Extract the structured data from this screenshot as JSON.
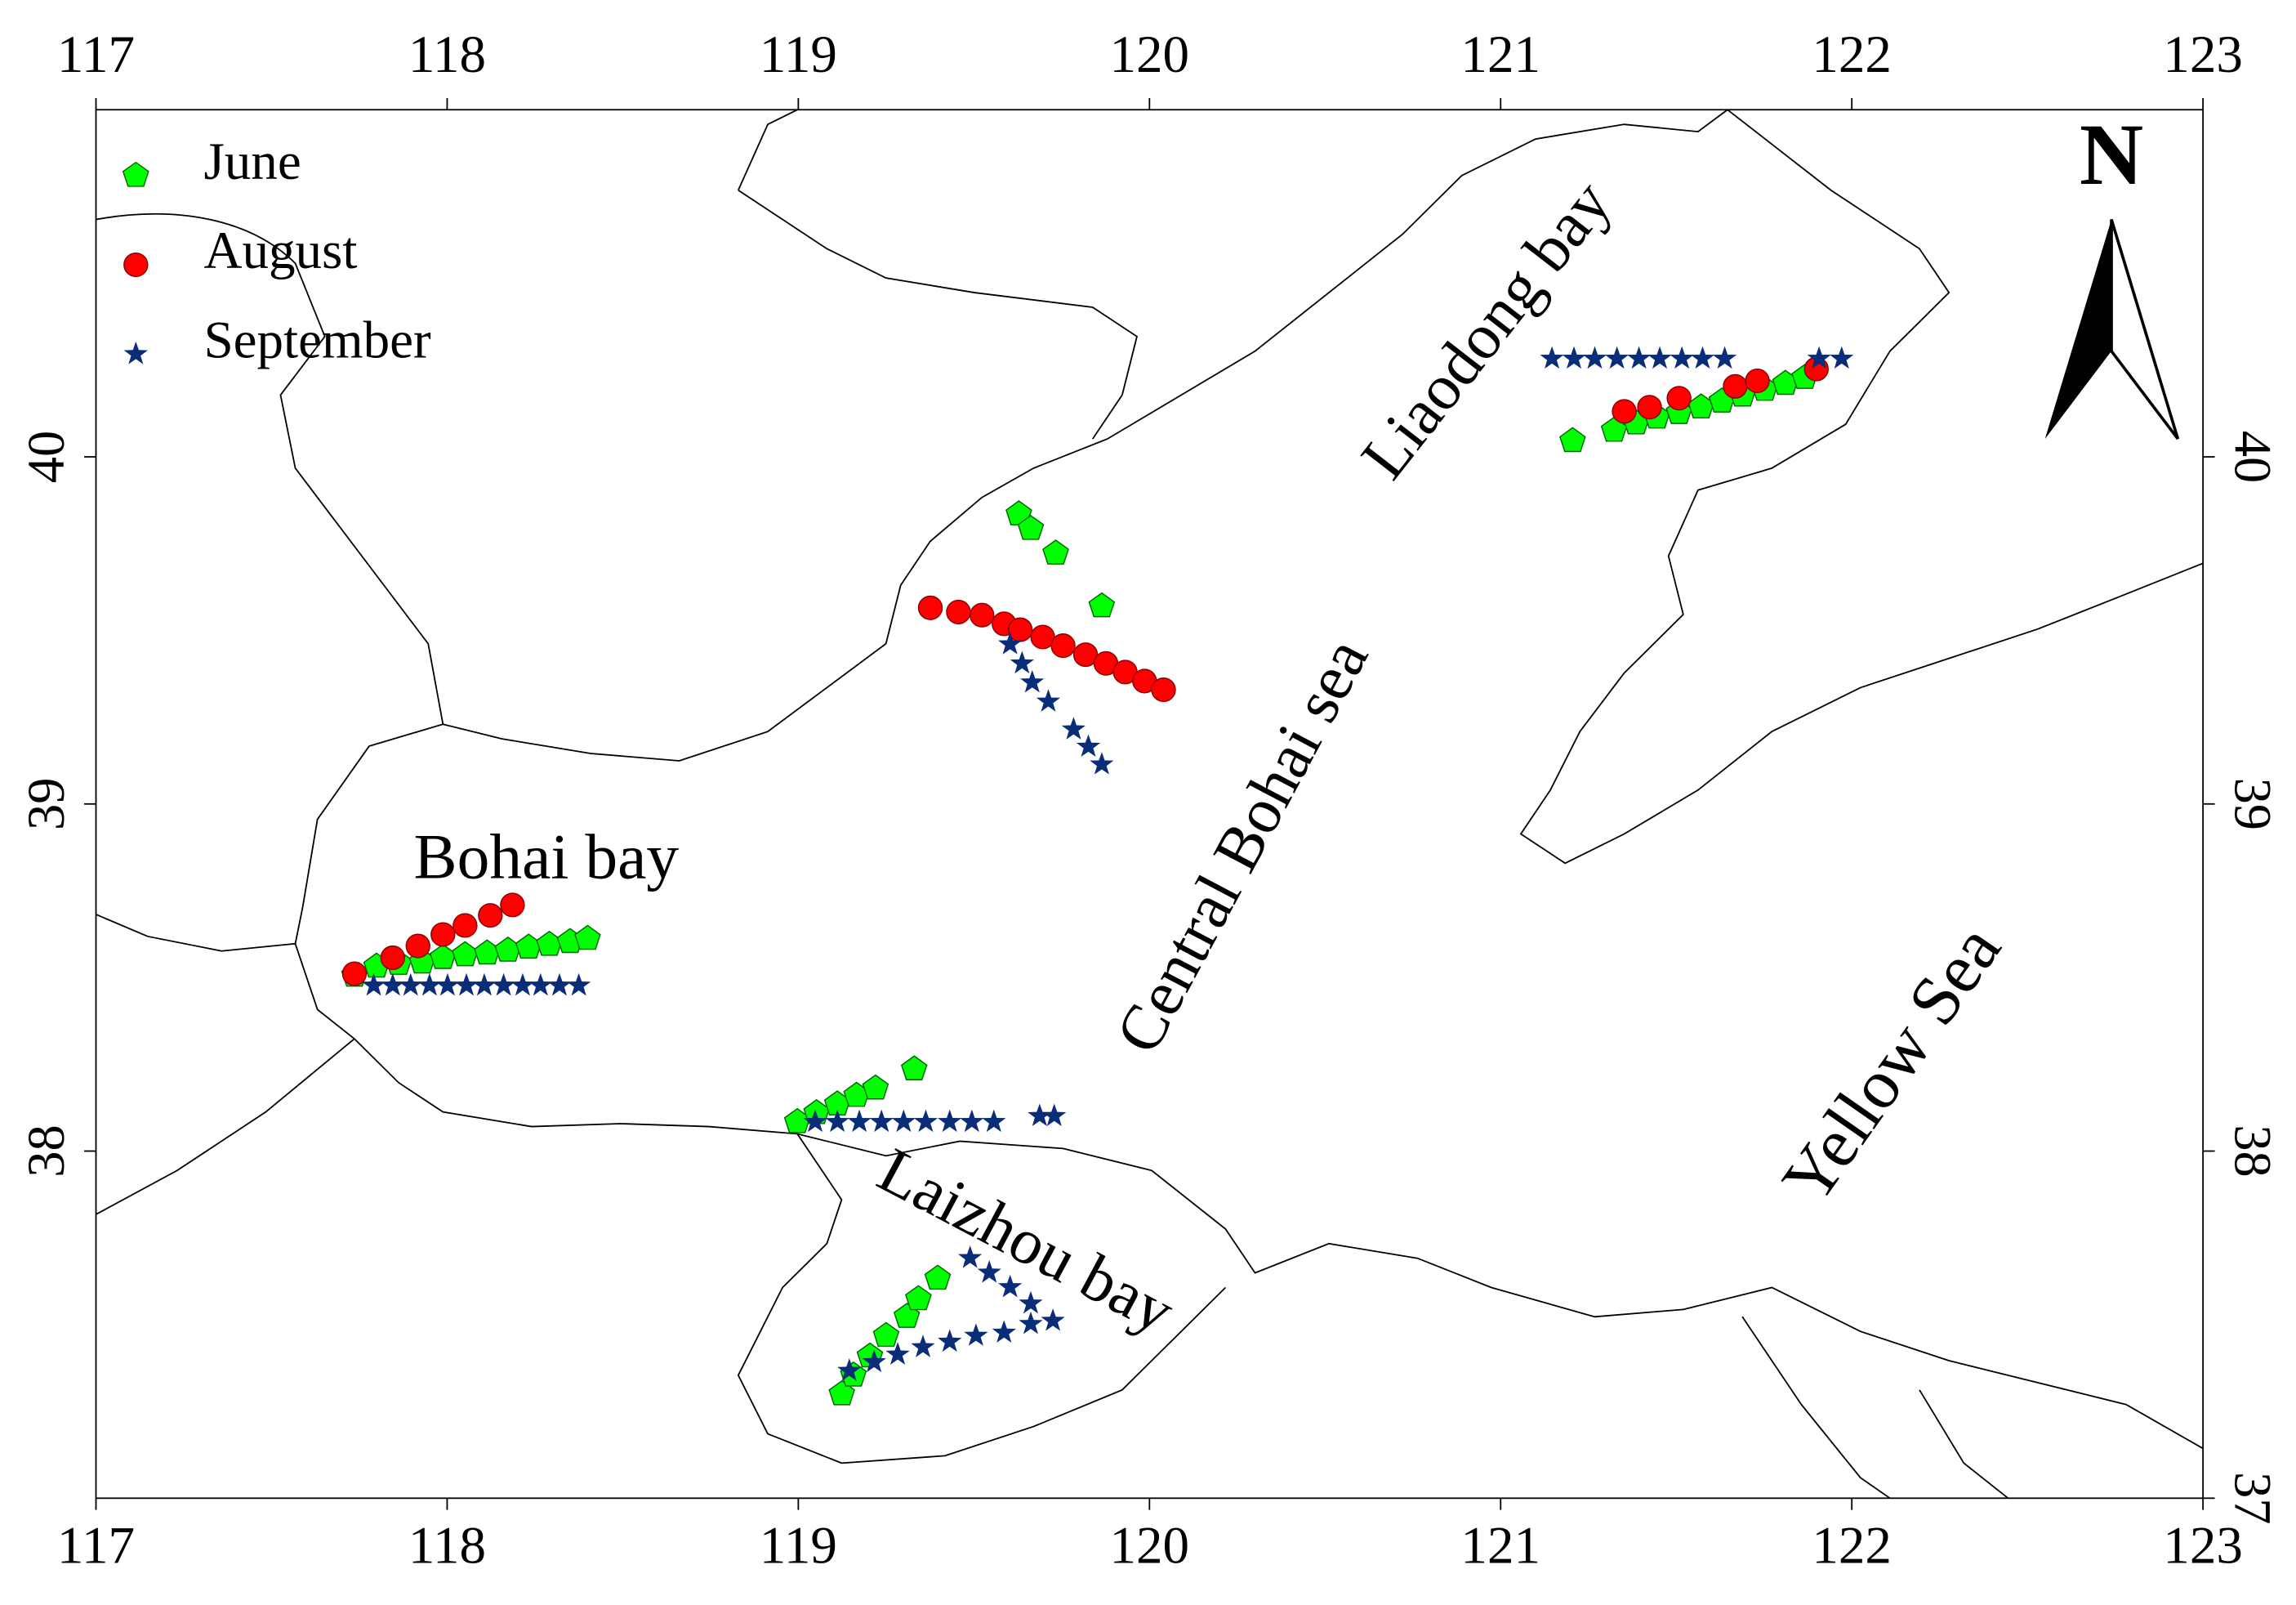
{
  "chart_data": {
    "type": "scatter",
    "legend": "upper left",
    "xlim": [
      117,
      123
    ],
    "ylim": [
      37,
      41
    ],
    "y2lim": [
      37,
      41
    ],
    "xticks": [
      117,
      118,
      119,
      120,
      121,
      122,
      123
    ],
    "yticks": [
      38,
      39,
      40
    ],
    "y2ticks": [
      37,
      38,
      39,
      40
    ],
    "annotations": [
      "Bohai bay",
      "Central Bohai sea",
      "Liaodong bay",
      "Laizhou bay",
      "Yellow Sea",
      "N"
    ],
    "series": [
      {
        "name": "June",
        "color": "#00ff00",
        "marker": "pentagon",
        "x": [
          121.205,
          121.323,
          121.386,
          121.445,
          121.508,
          121.571,
          121.63,
          121.689,
          121.752,
          121.811,
          121.866,
          119.628,
          119.662,
          119.733,
          119.864,
          117.736,
          117.799,
          117.862,
          117.929,
          117.988,
          118.051,
          118.114,
          118.173,
          118.232,
          118.291,
          118.35,
          118.4,
          118.997,
          119.052,
          119.111,
          119.166,
          119.22,
          119.33,
          119.124,
          119.157,
          119.204,
          119.25,
          119.309,
          119.342,
          119.397
        ],
        "values": [
          40.046,
          40.076,
          40.097,
          40.114,
          40.127,
          40.143,
          40.16,
          40.177,
          40.194,
          40.211,
          40.228,
          39.835,
          39.793,
          39.722,
          39.57,
          38.506,
          38.532,
          38.54,
          38.544,
          38.557,
          38.565,
          38.57,
          38.578,
          38.587,
          38.595,
          38.603,
          38.612,
          38.084,
          38.11,
          38.135,
          38.16,
          38.181,
          38.236,
          37.3,
          37.354,
          37.409,
          37.468,
          37.523,
          37.574,
          37.633
        ]
      },
      {
        "name": "August",
        "color": "#ff0000",
        "marker": "circle",
        "x": [
          121.352,
          121.424,
          121.508,
          121.668,
          121.731,
          121.899,
          119.376,
          119.456,
          119.523,
          119.586,
          119.632,
          119.696,
          119.754,
          119.818,
          119.876,
          119.931,
          119.986,
          120.04,
          117.736,
          117.845,
          117.917,
          117.988,
          118.051,
          118.123,
          118.186
        ],
        "values": [
          40.131,
          40.143,
          40.169,
          40.203,
          40.219,
          40.253,
          39.565,
          39.553,
          39.544,
          39.519,
          39.502,
          39.481,
          39.456,
          39.43,
          39.405,
          39.38,
          39.354,
          39.329,
          38.511,
          38.557,
          38.591,
          38.624,
          38.65,
          38.679,
          38.709
        ]
      },
      {
        "name": "September",
        "color": "#0a2d7a",
        "marker": "star",
        "x": [
          121.146,
          121.209,
          121.268,
          121.331,
          121.394,
          121.453,
          121.516,
          121.575,
          121.638,
          121.907,
          121.971,
          119.603,
          119.637,
          119.666,
          119.712,
          119.784,
          119.826,
          119.864,
          117.791,
          117.845,
          117.896,
          117.95,
          118.001,
          118.055,
          118.106,
          118.161,
          118.215,
          118.266,
          118.32,
          118.375,
          119.048,
          119.111,
          119.174,
          119.237,
          119.3,
          119.363,
          119.431,
          119.494,
          119.557,
          119.687,
          119.729,
          119.145,
          119.216,
          119.283,
          119.355,
          119.431,
          119.506,
          119.586,
          119.662,
          119.725,
          119.489,
          119.544,
          119.603,
          119.662
        ],
        "values": [
          40.283,
          40.283,
          40.283,
          40.283,
          40.283,
          40.283,
          40.283,
          40.283,
          40.283,
          40.283,
          40.283,
          39.46,
          39.405,
          39.35,
          39.295,
          39.215,
          39.165,
          39.114,
          38.477,
          38.477,
          38.477,
          38.477,
          38.477,
          38.477,
          38.477,
          38.477,
          38.477,
          38.477,
          38.477,
          38.477,
          38.084,
          38.084,
          38.084,
          38.084,
          38.084,
          38.084,
          38.084,
          38.084,
          38.084,
          38.101,
          38.101,
          37.367,
          37.392,
          37.414,
          37.435,
          37.451,
          37.468,
          37.477,
          37.502,
          37.511,
          37.692,
          37.65,
          37.608,
          37.561
        ]
      }
    ]
  }
}
